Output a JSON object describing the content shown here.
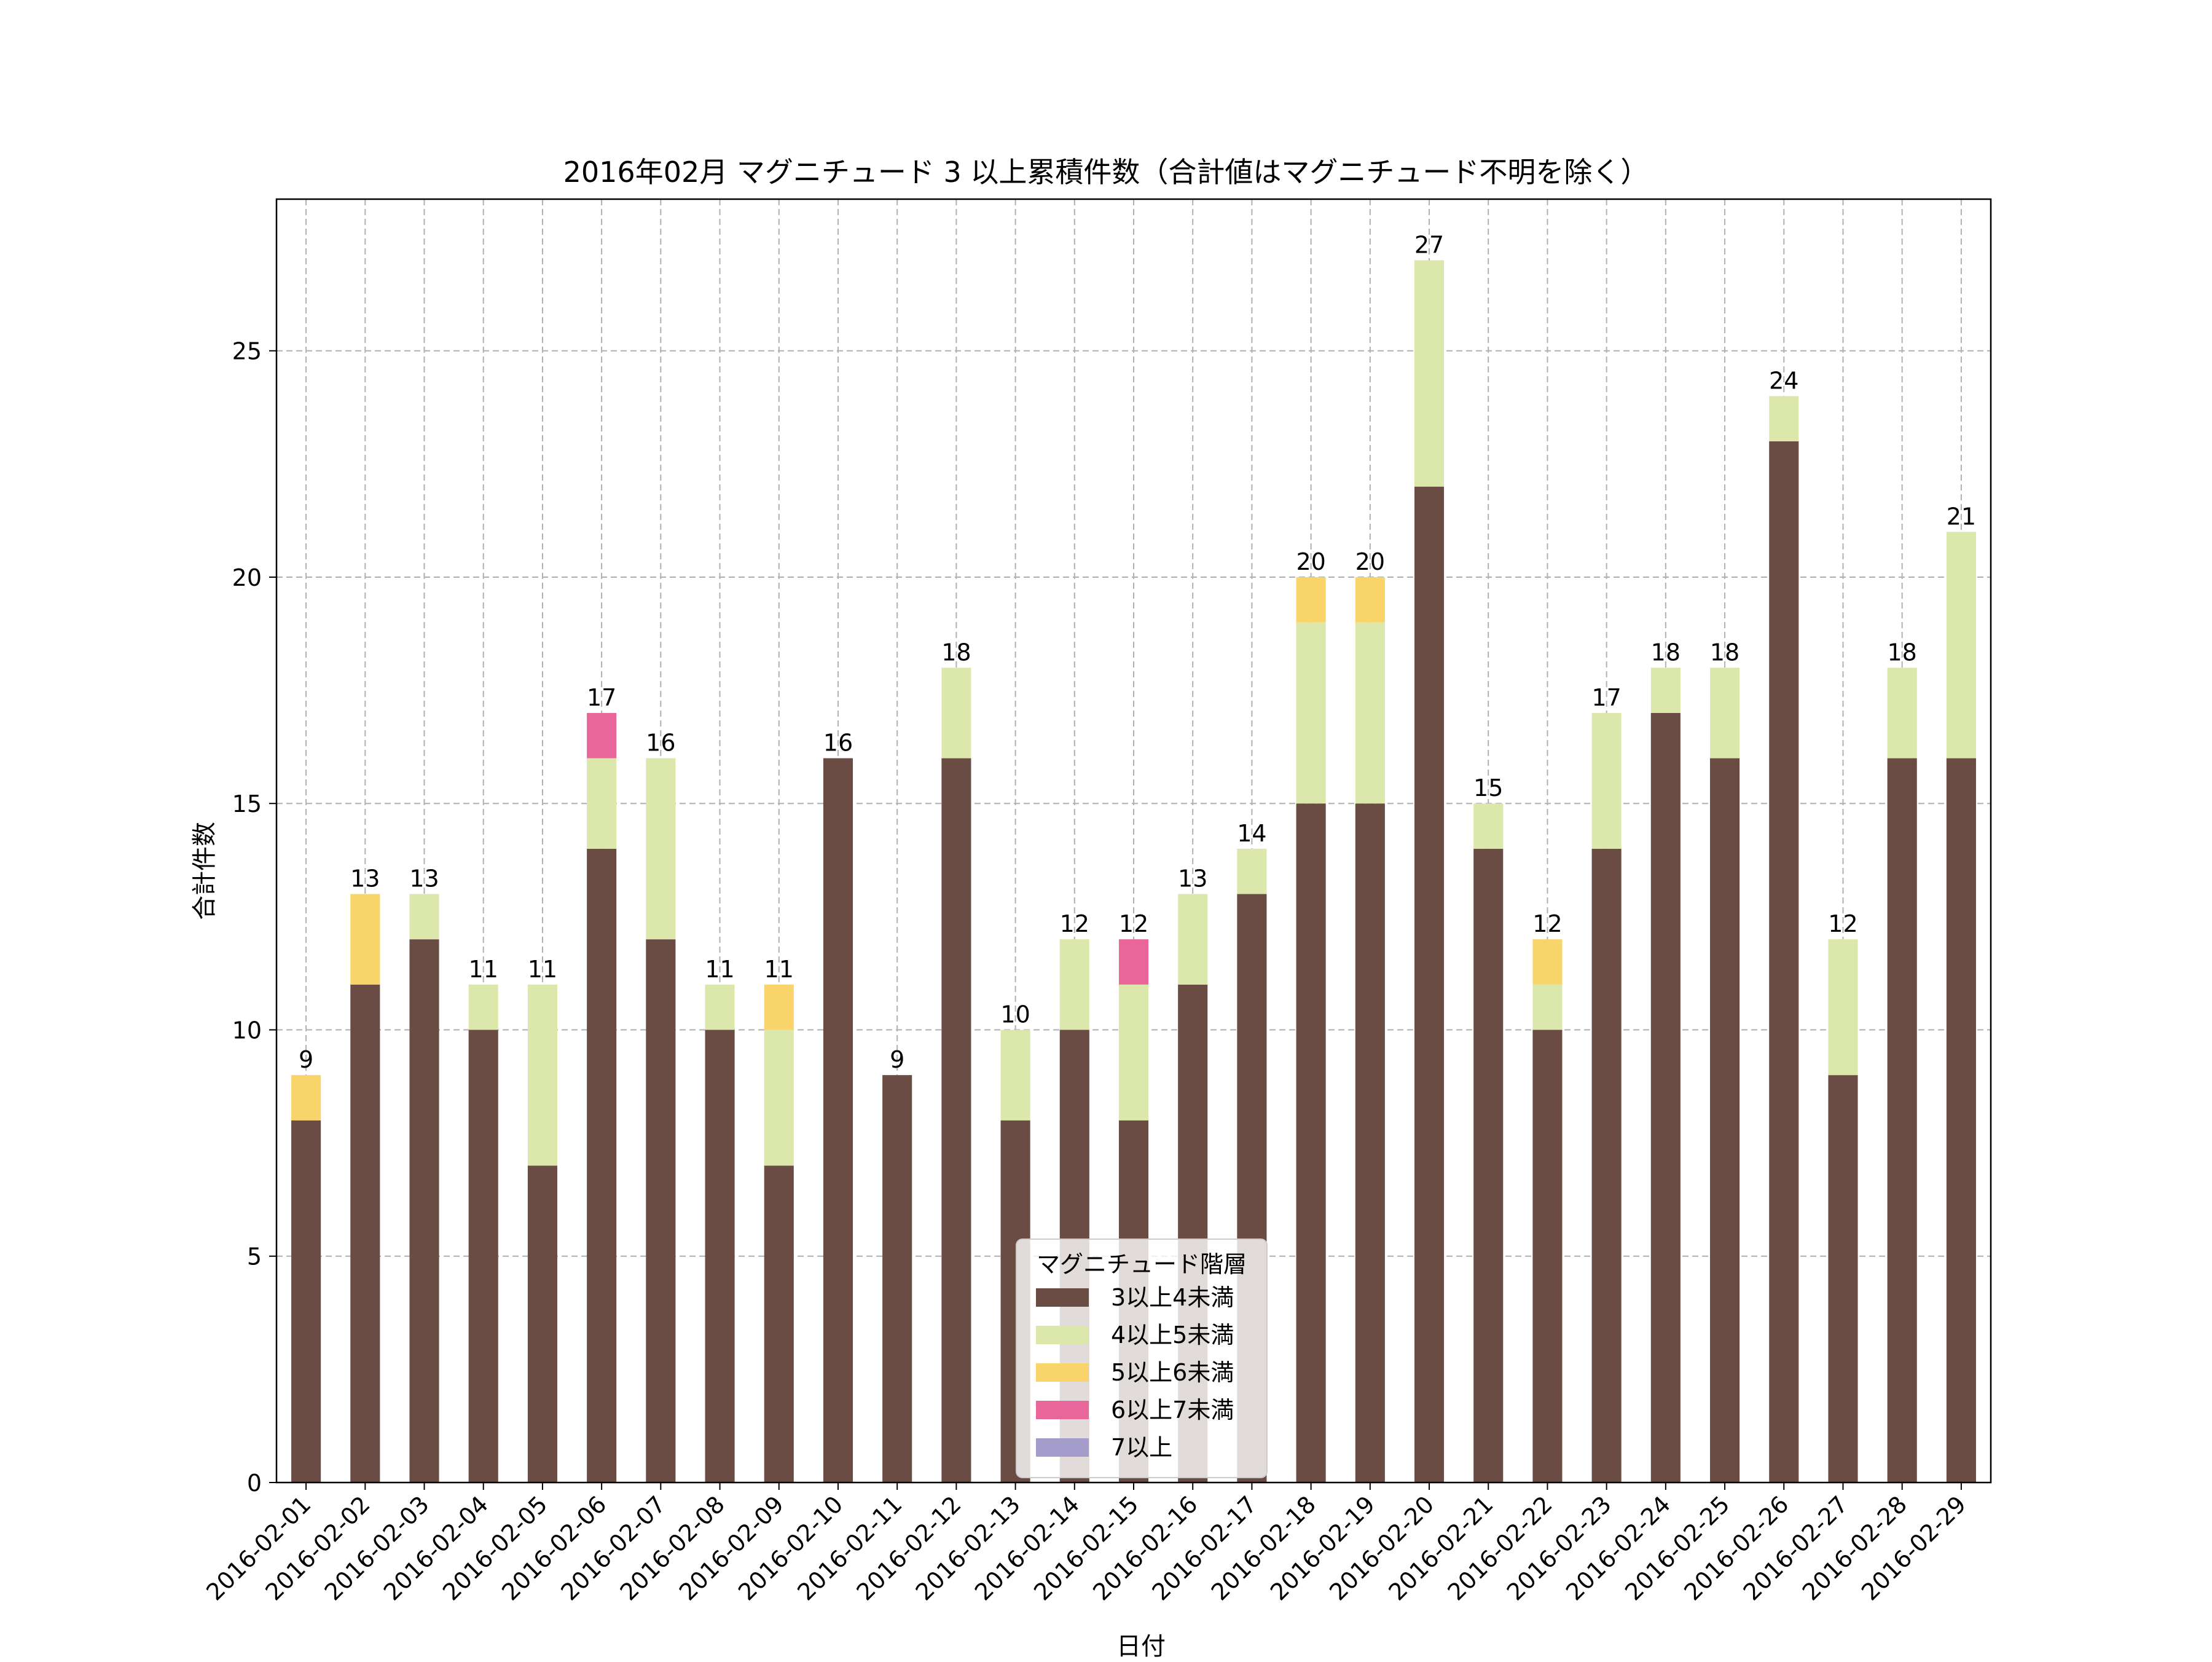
{
  "chart_data": {
    "type": "bar",
    "stacked": true,
    "title": "2016年02月 マグニチュード 3 以上累積件数（合計値はマグニチュード不明を除く）",
    "xlabel": "日付",
    "ylabel": "合計件数",
    "ylim": [
      0,
      28.35
    ],
    "yticks": [
      0,
      5,
      10,
      15,
      20,
      25
    ],
    "grid": true,
    "legend": {
      "title": "マグニチュード階層",
      "placement": "lower-center"
    },
    "categories": [
      "2016-02-01",
      "2016-02-02",
      "2016-02-03",
      "2016-02-04",
      "2016-02-05",
      "2016-02-06",
      "2016-02-07",
      "2016-02-08",
      "2016-02-09",
      "2016-02-10",
      "2016-02-11",
      "2016-02-12",
      "2016-02-13",
      "2016-02-14",
      "2016-02-15",
      "2016-02-16",
      "2016-02-17",
      "2016-02-18",
      "2016-02-19",
      "2016-02-20",
      "2016-02-21",
      "2016-02-22",
      "2016-02-23",
      "2016-02-24",
      "2016-02-25",
      "2016-02-26",
      "2016-02-27",
      "2016-02-28",
      "2016-02-29"
    ],
    "series": [
      {
        "name": "3以上4未満",
        "color": "#6b4c45",
        "values": [
          8,
          11,
          12,
          10,
          7,
          14,
          12,
          10,
          7,
          16,
          9,
          16,
          8,
          10,
          8,
          11,
          13,
          15,
          15,
          22,
          14,
          10,
          14,
          17,
          16,
          23,
          9,
          16,
          16
        ]
      },
      {
        "name": "4以上5未満",
        "color": "#dce8ab",
        "values": [
          0,
          0,
          1,
          1,
          4,
          2,
          4,
          1,
          3,
          0,
          0,
          2,
          2,
          2,
          3,
          2,
          1,
          4,
          4,
          5,
          1,
          1,
          3,
          1,
          2,
          1,
          3,
          2,
          5
        ]
      },
      {
        "name": "5以上6未満",
        "color": "#f8d46b",
        "values": [
          1,
          2,
          0,
          0,
          0,
          0,
          0,
          0,
          1,
          0,
          0,
          0,
          0,
          0,
          0,
          0,
          0,
          1,
          1,
          0,
          0,
          1,
          0,
          0,
          0,
          0,
          0,
          0,
          0
        ]
      },
      {
        "name": "6以上7未満",
        "color": "#e8669a",
        "values": [
          0,
          0,
          0,
          0,
          0,
          1,
          0,
          0,
          0,
          0,
          0,
          0,
          0,
          0,
          1,
          0,
          0,
          0,
          0,
          0,
          0,
          0,
          0,
          0,
          0,
          0,
          0,
          0,
          0
        ]
      },
      {
        "name": "7以上",
        "color": "#a49ccb",
        "values": [
          0,
          0,
          0,
          0,
          0,
          0,
          0,
          0,
          0,
          0,
          0,
          0,
          0,
          0,
          0,
          0,
          0,
          0,
          0,
          0,
          0,
          0,
          0,
          0,
          0,
          0,
          0,
          0,
          0
        ]
      }
    ],
    "totals": [
      9,
      13,
      13,
      11,
      11,
      17,
      16,
      11,
      11,
      16,
      9,
      18,
      10,
      12,
      12,
      13,
      14,
      20,
      20,
      27,
      15,
      12,
      17,
      18,
      18,
      24,
      12,
      18,
      21
    ]
  }
}
